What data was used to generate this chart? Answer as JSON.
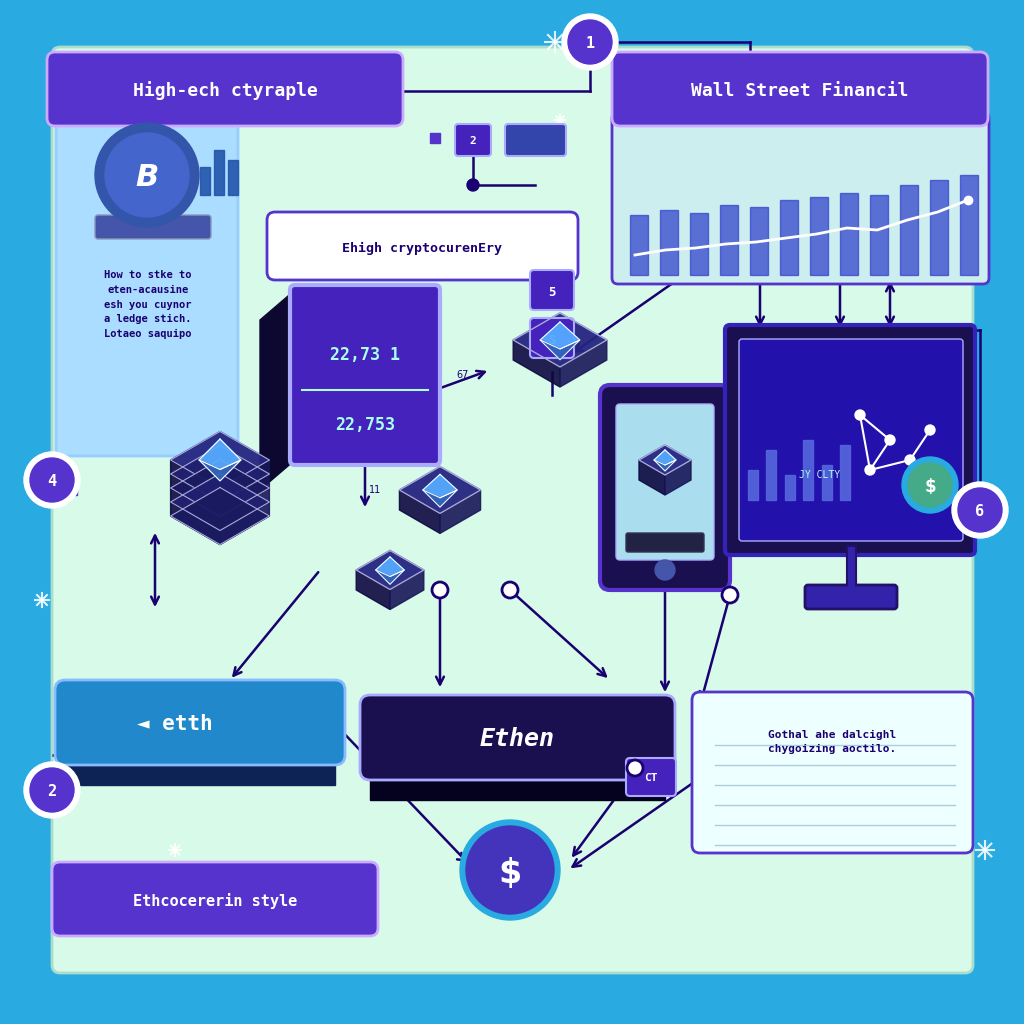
{
  "bg_color": "#29ABE2",
  "inner_bg_color": "#D8FAE8",
  "title_top_left": "High-ech ctyraple",
  "title_top_right": "Wall Street Financil",
  "label_center_top": "Ehigh cryptocurenEry",
  "label_bottom_left": "Ethcocererin style",
  "label_bottom_right": "Gothal ahe dalcighl\nchygoizing aoctilo.",
  "price_display1": "22,73 1",
  "price_display2": "22,753",
  "text_box_left": "How to stke to\neten-acausine\nesh you cuynor\na ledge stich.\nLotaeo saquipo",
  "arrow_color": "#1A0070",
  "box_purple": "#5533CC",
  "box_purple2": "#4422BB",
  "eth_dark": "#1A1050",
  "text_color_white": "#FFFFFF",
  "text_color_dark": "#1A0070",
  "dollar_circle_color": "#4433BB",
  "eth_top_color": "#252580",
  "eth_side_color": "#151040",
  "eth_gem_light": "#55AAFF",
  "eth_gem_dark": "#3366BB"
}
